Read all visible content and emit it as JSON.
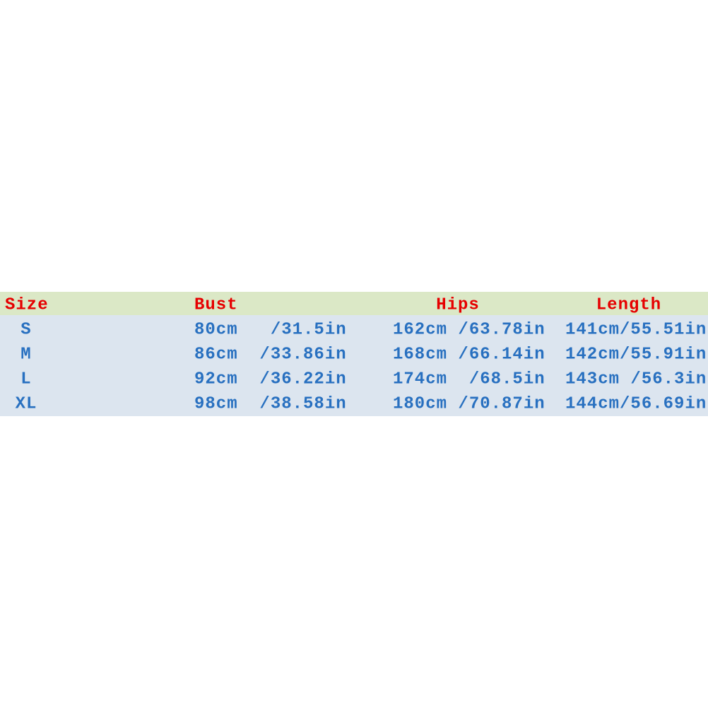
{
  "table": {
    "header": [
      "Size",
      "Bust",
      "Hips",
      "Length"
    ],
    "rows": [
      [
        "S",
        "80cm   /31.5in",
        "162cm /63.78in",
        "141cm/55.51in"
      ],
      [
        "M",
        "86cm  /33.86in",
        "168cm /66.14in",
        "142cm/55.91in"
      ],
      [
        "L",
        "92cm  /36.22in",
        "174cm  /68.5in",
        "143cm /56.3in"
      ],
      [
        "XL",
        "98cm  /38.58in",
        "180cm /70.87in",
        "144cm/56.69in"
      ]
    ]
  }
}
